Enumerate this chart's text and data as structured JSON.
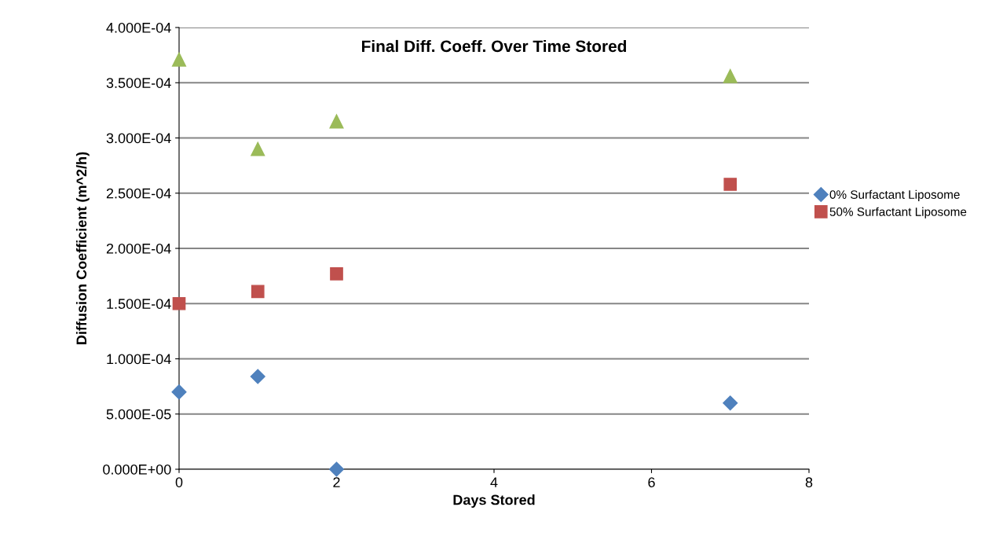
{
  "chart_data": {
    "type": "scatter",
    "title": "Final Diff. Coeff. Over Time Stored",
    "xlabel": "Days Stored",
    "ylabel": "Diffusion Coefficient (m^2/h)",
    "x": [
      0,
      1,
      2,
      7
    ],
    "series": [
      {
        "name": "0% Surfactant Liposome",
        "color": "#4f81bd",
        "marker": "diamond",
        "values": [
          7e-05,
          8.4e-05,
          0,
          6e-05
        ]
      },
      {
        "name": "50% Surfactant Liposome",
        "color": "#c0504d",
        "marker": "square",
        "values": [
          0.00015,
          0.000161,
          0.000177,
          0.000258
        ]
      },
      {
        "color": "#9bbb59",
        "marker": "triangle",
        "values": [
          0.000371,
          0.00029,
          0.000315,
          0.000356
        ]
      }
    ],
    "xlim": [
      0,
      8
    ],
    "xticks": [
      0,
      2,
      4,
      6,
      8
    ],
    "ylim": [
      0,
      0.0004
    ],
    "yticks": [
      {
        "value": 0,
        "label": "0.000E+00"
      },
      {
        "value": 5e-05,
        "label": "5.000E-05"
      },
      {
        "value": 0.0001,
        "label": "1.000E-04"
      },
      {
        "value": 0.00015,
        "label": "1.500E-04"
      },
      {
        "value": 0.0002,
        "label": "2.000E-04"
      },
      {
        "value": 0.00025,
        "label": "2.500E-04"
      },
      {
        "value": 0.0003,
        "label": "3.000E-04"
      },
      {
        "value": 0.00035,
        "label": "3.500E-04"
      },
      {
        "value": 0.0004,
        "label": "4.000E-04"
      }
    ],
    "grid": "y",
    "legend": "right"
  }
}
